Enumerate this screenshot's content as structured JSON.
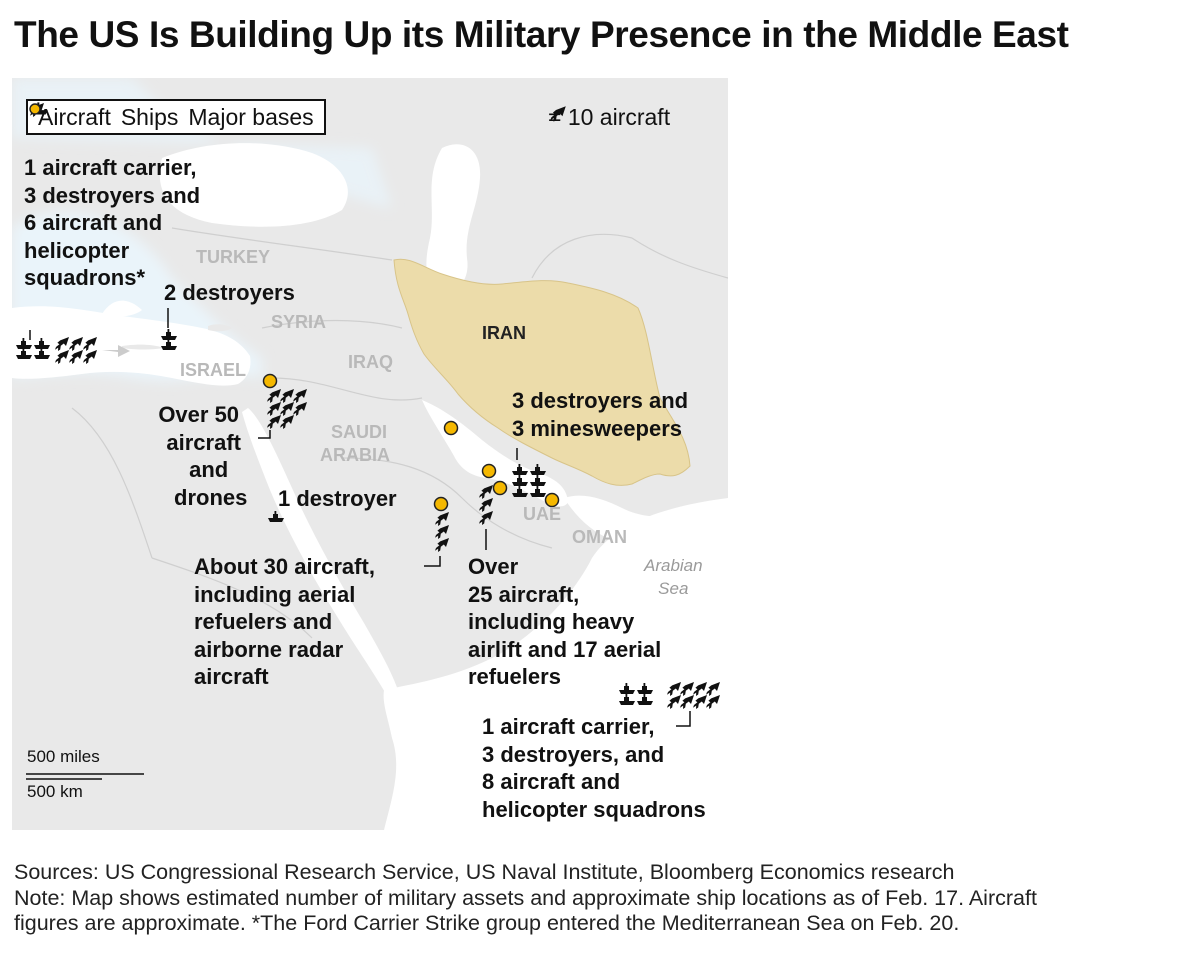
{
  "title": "The US Is Building Up its Military Presence in the Middle East",
  "legend": {
    "aircraft": "Aircraft",
    "ships": "Ships",
    "bases": "Major bases",
    "scale": "= 10 aircraft",
    "base_color": "#f5b800"
  },
  "countries": {
    "turkey": "TURKEY",
    "syria": "SYRIA",
    "israel": "ISRAEL",
    "iraq": "IRAQ",
    "saudi_1": "SAUDI",
    "saudi_2": "ARABIA",
    "iran": "IRAN",
    "uae": "UAE",
    "oman": "OMAN",
    "iran_fill": "#ecdcaa"
  },
  "seas": {
    "arabian_1": "Arabian",
    "arabian_2": "Sea"
  },
  "annotations": {
    "med_west": [
      "1 aircraft carrier,",
      "3 destroyers and",
      "6 aircraft and",
      "helicopter",
      "squadrons*"
    ],
    "med_east": [
      "2 destroyers"
    ],
    "jordan": [
      "Over 50",
      "aircraft",
      "and",
      "drones"
    ],
    "red_sea": [
      "1 destroyer"
    ],
    "saudi_base": [
      "About 30 aircraft,",
      "including aerial",
      "refuelers and",
      "airborne radar",
      "aircraft"
    ],
    "gulf": [
      "Over",
      "25 aircraft,",
      "including heavy",
      "airlift and 17 aerial",
      "refuelers"
    ],
    "hormuz": [
      "3 destroyers and",
      "3 minesweepers"
    ],
    "arabian_sea": [
      "1 aircraft carrier,",
      "3 destroyers, and",
      "8 aircraft and",
      "helicopter squadrons"
    ]
  },
  "scale_bar": {
    "miles": "500 miles",
    "km": "500 km"
  },
  "footer": {
    "sources": "Sources: US Congressional Research Service, US Naval Institute, Bloomberg Economics research",
    "note_1": "Note: Map shows estimated number of military assets and approximate ship locations as of Feb. 17. Aircraft",
    "note_2": "figures are approximate. *The Ford Carrier Strike group entered the Mediterranean Sea on Feb. 20."
  }
}
